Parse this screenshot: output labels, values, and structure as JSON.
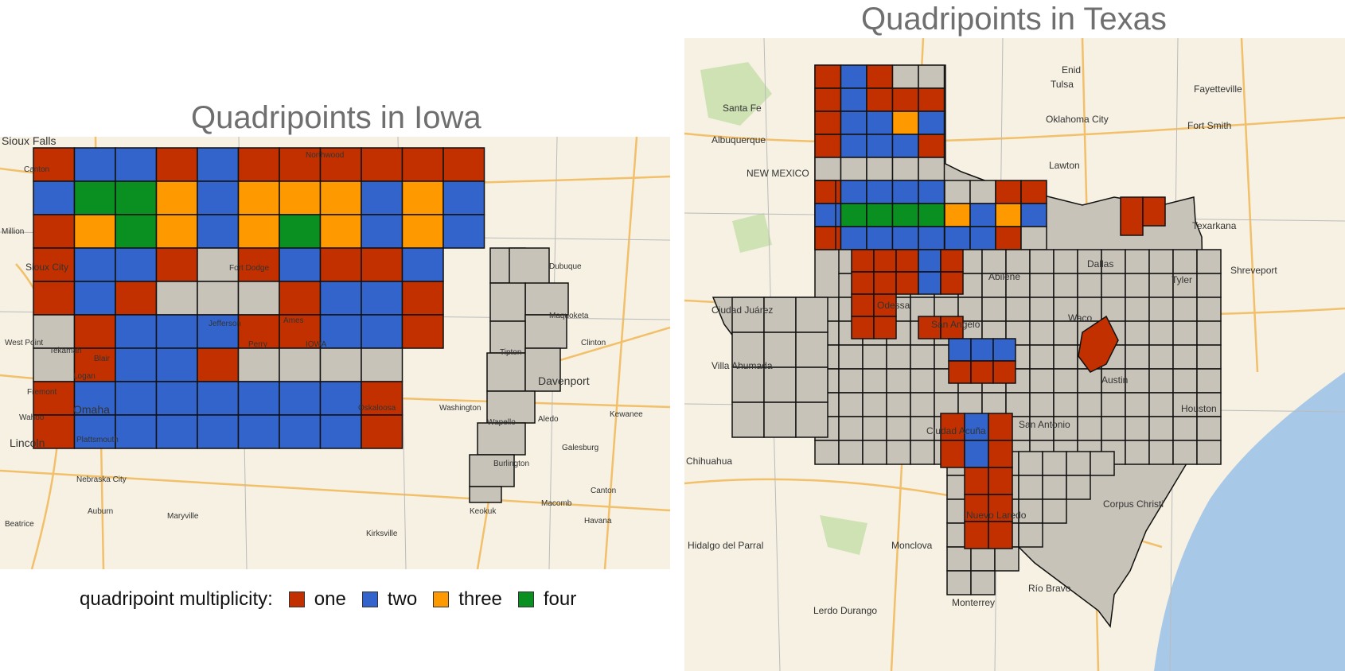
{
  "titles": {
    "iowa": "Quadripoints in Iowa",
    "texas": "Quadripoints in Texas"
  },
  "legend": {
    "label": "quadripoint multiplicity:",
    "items": [
      {
        "label": "one",
        "color": "#c33000"
      },
      {
        "label": "two",
        "color": "#3264cc"
      },
      {
        "label": "three",
        "color": "#ff9900"
      },
      {
        "label": "four",
        "color": "#0a9020"
      }
    ]
  },
  "colors": {
    "none": "#c8c3b8",
    "water": "#a8c8e8",
    "land": "#f6f1e3",
    "forest": "#cfe2b4",
    "road": "#f2c06a",
    "border": "#111111"
  },
  "iowa_places": [
    "Sioux Falls",
    "Canton",
    "Northwood",
    "Sioux City",
    "Fort Dodge",
    "Dubuque",
    "Maquoketa",
    "Jefferson",
    "Ames",
    "Perry",
    "IOWA",
    "Clinton",
    "Tipton",
    "West Point",
    "Tekamah",
    "Logan",
    "Blair",
    "Davenport",
    "Fremont",
    "Omaha",
    "Oskaloosa",
    "Washington",
    "Wahoo",
    "Wapello",
    "Aledo",
    "Kewanee",
    "Lincoln",
    "Plattsmouth",
    "Galesburg",
    "Nebraska City",
    "Burlington",
    "Auburn",
    "Maryville",
    "Macomb",
    "Keokuk",
    "Canton",
    "Havana",
    "Beatrice",
    "Kirksville",
    "Million"
  ],
  "texas_places": [
    "Santa Fe",
    "Enid",
    "Tulsa",
    "Fayetteville",
    "Oklahoma City",
    "Fort Smith",
    "Albuquerque",
    "NEW MEXICO",
    "Lawton",
    "Texarkana",
    "Shreveport",
    "Ciudad Juárez",
    "Odessa",
    "San Angelo",
    "Tyler",
    "Waco",
    "Villa Ahumada",
    "Austin",
    "Houston",
    "San Antonio",
    "Ciudad Acuña",
    "Chihuahua",
    "Corpus Christi",
    "Nuevo Laredo",
    "Hidalgo del Parral",
    "Monclova",
    "Río Bravo",
    "Lerdo Durango",
    "Monterrey",
    "Dallas",
    "Abilene"
  ],
  "iowa_grid": [
    [
      1,
      2,
      2,
      1,
      2,
      1,
      1,
      1,
      1,
      1,
      1
    ],
    [
      2,
      4,
      4,
      3,
      2,
      3,
      3,
      3,
      2,
      3,
      2
    ],
    [
      1,
      3,
      4,
      3,
      2,
      3,
      4,
      3,
      2,
      3,
      2
    ],
    [
      1,
      2,
      2,
      1,
      0,
      1,
      2,
      1,
      1,
      2,
      1
    ],
    [
      1,
      2,
      1,
      0,
      0,
      0,
      1,
      2,
      2,
      1,
      0
    ],
    [
      0,
      1,
      2,
      2,
      2,
      1,
      1,
      2,
      2,
      1,
      0
    ],
    [
      0,
      1,
      2,
      2,
      1,
      0,
      0,
      0,
      0,
      0,
      0
    ],
    [
      1,
      2,
      2,
      2,
      2,
      2,
      2,
      2,
      1,
      0,
      0
    ],
    [
      1,
      2,
      2,
      2,
      2,
      2,
      2,
      2,
      1,
      0,
      0
    ]
  ],
  "texas_panhandle_grid": [
    [
      1,
      2,
      1,
      0,
      0
    ],
    [
      1,
      2,
      1,
      1,
      1
    ],
    [
      1,
      2,
      2,
      3,
      2
    ],
    [
      1,
      2,
      2,
      2,
      1
    ],
    [
      0,
      0,
      0,
      0,
      0
    ],
    [
      1,
      2,
      2,
      2,
      2
    ],
    [
      2,
      4,
      4,
      4,
      4
    ],
    [
      1,
      2,
      2,
      2,
      2
    ]
  ],
  "texas_panhandle_east": [
    [
      0,
      0,
      1,
      1
    ],
    [
      3,
      2,
      3,
      2
    ],
    [
      2,
      2,
      1,
      0
    ]
  ],
  "texas_central_blocks": [
    [
      1,
      1,
      1,
      2,
      1
    ],
    [
      1,
      1,
      1,
      2,
      1
    ],
    [
      1,
      1,
      0,
      0,
      0
    ],
    [
      1,
      1,
      0,
      1,
      1
    ],
    [
      0,
      0,
      2,
      2,
      2
    ],
    [
      0,
      0,
      1,
      1,
      1
    ]
  ],
  "texas_south_blocks": [
    [
      1,
      2,
      1
    ],
    [
      1,
      2,
      1
    ],
    [
      0,
      1,
      1
    ],
    [
      0,
      1,
      1
    ],
    [
      0,
      1,
      1
    ]
  ]
}
